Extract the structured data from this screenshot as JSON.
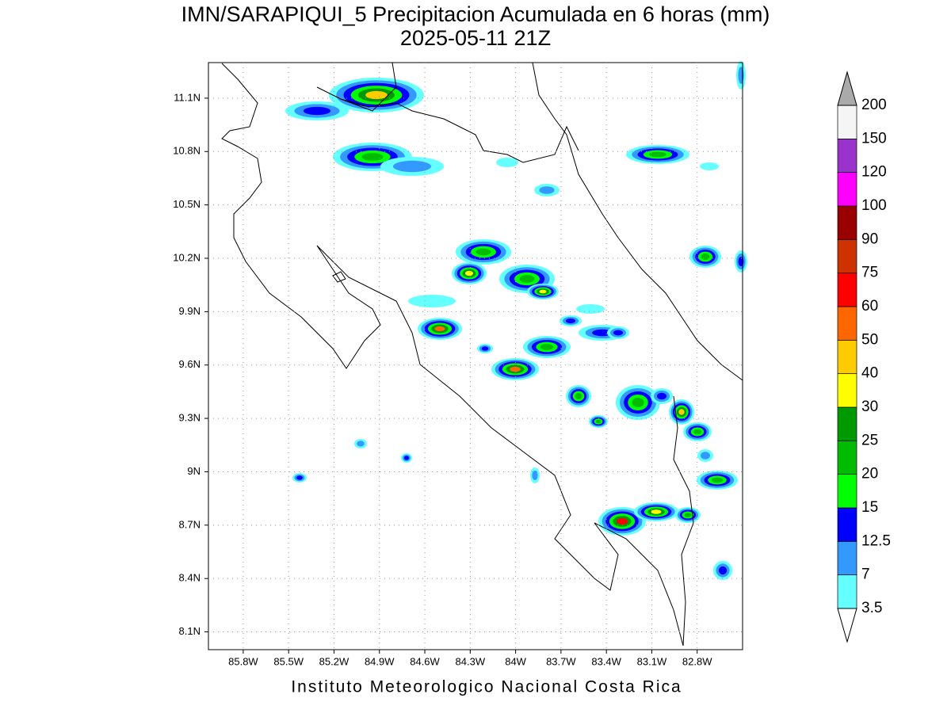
{
  "header": {
    "title": "IMN/SARAPIQUI_5 Precipitacion Acumulada en 6 horas (mm)",
    "subtitle": "2025-05-11 21Z"
  },
  "map": {
    "xlim": [
      -86.03,
      -82.5
    ],
    "ylim": [
      8.0,
      11.3
    ],
    "xticks": [
      {
        "value": -85.8,
        "label": "85.8W"
      },
      {
        "value": -85.5,
        "label": "85.5W"
      },
      {
        "value": -85.2,
        "label": "85.2W"
      },
      {
        "value": -84.9,
        "label": "84.9W"
      },
      {
        "value": -84.6,
        "label": "84.6W"
      },
      {
        "value": -84.3,
        "label": "84.3W"
      },
      {
        "value": -84.0,
        "label": "84W"
      },
      {
        "value": -83.7,
        "label": "83.7W"
      },
      {
        "value": -83.4,
        "label": "83.4W"
      },
      {
        "value": -83.1,
        "label": "83.1W"
      },
      {
        "value": -82.8,
        "label": "82.8W"
      }
    ],
    "yticks": [
      {
        "value": 11.1,
        "label": "11.1N"
      },
      {
        "value": 10.8,
        "label": "10.8N"
      },
      {
        "value": 10.5,
        "label": "10.5N"
      },
      {
        "value": 10.2,
        "label": "10.2N"
      },
      {
        "value": 9.9,
        "label": "9.9N"
      },
      {
        "value": 9.6,
        "label": "9.6N"
      },
      {
        "value": 9.3,
        "label": "9.3N"
      },
      {
        "value": 9.0,
        "label": "9N"
      },
      {
        "value": 8.7,
        "label": "8.7N"
      },
      {
        "value": 8.4,
        "label": "8.4N"
      },
      {
        "value": 8.1,
        "label": "8.1N"
      }
    ],
    "grid": true
  },
  "colorbar": {
    "levels": [
      3.5,
      7,
      12.5,
      15,
      20,
      25,
      30,
      40,
      50,
      60,
      75,
      90,
      100,
      120,
      150,
      200
    ],
    "colors": [
      "#ffffff",
      "#66ffff",
      "#3399ff",
      "#0000ff",
      "#00ff00",
      "#00bb00",
      "#009900",
      "#ffff00",
      "#ffcc00",
      "#ff6600",
      "#ff0000",
      "#cc3300",
      "#990000",
      "#ff00ff",
      "#9933cc",
      "#f5f5f5",
      "#aaaaaa"
    ]
  },
  "footer": "Instituto Meteorologico Nacional Costa Rica"
}
